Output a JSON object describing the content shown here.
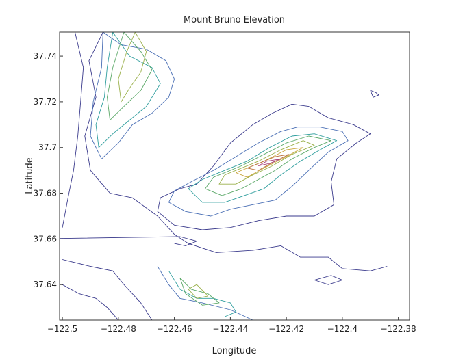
{
  "chart_data": {
    "type": "contour",
    "title": "Mount Bruno Elevation",
    "xlabel": "Longitude",
    "ylabel": "Latitude",
    "xlim": [
      -122.501,
      -122.376
    ],
    "ylim": [
      37.6245,
      37.7505
    ],
    "xticks": [
      -122.5,
      -122.48,
      -122.46,
      -122.44,
      -122.42,
      -122.4,
      -122.38
    ],
    "xtick_labels": [
      "−122.5",
      "−122.48",
      "−122.46",
      "−122.44",
      "−122.42",
      "−122.4",
      "−122.38"
    ],
    "yticks": [
      37.64,
      37.66,
      37.68,
      37.7,
      37.72,
      37.74
    ],
    "ytick_labels": [
      "37.64",
      "37.66",
      "37.68",
      "37.7",
      "37.72",
      "37.74"
    ],
    "grid": false,
    "legend": false,
    "level_colors": [
      "#3a3a8c",
      "#4a6fb5",
      "#2f9e9e",
      "#5aa867",
      "#9ab04a",
      "#c9a43a",
      "#b86e3a",
      "#a8447a"
    ],
    "contours": [
      {
        "level": 0,
        "points": [
          [
            -122.4955,
            37.7505
          ],
          [
            -122.4925,
            37.735
          ],
          [
            -122.4935,
            37.72
          ],
          [
            -122.4945,
            37.705
          ],
          [
            -122.496,
            37.69
          ],
          [
            -122.498,
            37.678
          ],
          [
            -122.5,
            37.665
          ]
        ]
      },
      {
        "level": 0,
        "points": [
          [
            -122.4855,
            37.7505
          ],
          [
            -122.4905,
            37.738
          ],
          [
            -122.488,
            37.722
          ],
          [
            -122.492,
            37.705
          ],
          [
            -122.49,
            37.69
          ],
          [
            -122.483,
            37.68
          ],
          [
            -122.475,
            37.678
          ],
          [
            -122.466,
            37.67
          ],
          [
            -122.46,
            37.662
          ],
          [
            -122.455,
            37.658
          ],
          [
            -122.445,
            37.654
          ],
          [
            -122.432,
            37.655
          ],
          [
            -122.422,
            37.657
          ],
          [
            -122.415,
            37.652
          ],
          [
            -122.405,
            37.652
          ],
          [
            -122.4,
            37.647
          ],
          [
            -122.39,
            37.646
          ],
          [
            -122.384,
            37.648
          ]
        ]
      },
      {
        "level": 0,
        "points": [
          [
            -122.5,
            37.651
          ],
          [
            -122.49,
            37.648
          ],
          [
            -122.482,
            37.646
          ],
          [
            -122.478,
            37.64
          ],
          [
            -122.472,
            37.632
          ],
          [
            -122.468,
            37.6245
          ]
        ]
      },
      {
        "level": 0,
        "points": [
          [
            -122.5,
            37.64
          ],
          [
            -122.494,
            37.636
          ],
          [
            -122.488,
            37.634
          ],
          [
            -122.484,
            37.63
          ],
          [
            -122.48,
            37.6245
          ]
        ]
      },
      {
        "level": 0,
        "points": [
          [
            -122.452,
            37.684
          ],
          [
            -122.458,
            37.682
          ],
          [
            -122.465,
            37.678
          ],
          [
            -122.466,
            37.672
          ],
          [
            -122.46,
            37.666
          ],
          [
            -122.45,
            37.664
          ],
          [
            -122.44,
            37.665
          ],
          [
            -122.43,
            37.668
          ],
          [
            -122.42,
            37.67
          ],
          [
            -122.41,
            37.67
          ],
          [
            -122.403,
            37.675
          ],
          [
            -122.404,
            37.685
          ],
          [
            -122.402,
            37.695
          ],
          [
            -122.395,
            37.702
          ],
          [
            -122.39,
            37.706
          ],
          [
            -122.396,
            37.71
          ],
          [
            -122.405,
            37.713
          ],
          [
            -122.412,
            37.718
          ],
          [
            -122.418,
            37.719
          ],
          [
            -122.425,
            37.715
          ],
          [
            -122.432,
            37.71
          ],
          [
            -122.44,
            37.702
          ],
          [
            -122.446,
            37.692
          ],
          [
            -122.452,
            37.684
          ]
        ]
      },
      {
        "level": 1,
        "points": [
          [
            -122.4855,
            37.7505
          ],
          [
            -122.479,
            37.745
          ],
          [
            -122.47,
            37.743
          ],
          [
            -122.463,
            37.738
          ],
          [
            -122.46,
            37.73
          ],
          [
            -122.462,
            37.722
          ],
          [
            -122.468,
            37.715
          ],
          [
            -122.475,
            37.71
          ],
          [
            -122.48,
            37.702
          ],
          [
            -122.486,
            37.695
          ],
          [
            -122.49,
            37.705
          ],
          [
            -122.489,
            37.72
          ],
          [
            -122.486,
            37.735
          ],
          [
            -122.4855,
            37.7505
          ]
        ]
      },
      {
        "level": 1,
        "points": [
          [
            -122.454,
            37.685
          ],
          [
            -122.46,
            37.681
          ],
          [
            -122.462,
            37.676
          ],
          [
            -122.456,
            37.672
          ],
          [
            -122.447,
            37.67
          ],
          [
            -122.44,
            37.673
          ],
          [
            -122.432,
            37.675
          ],
          [
            -122.424,
            37.677
          ],
          [
            -122.418,
            37.683
          ],
          [
            -122.412,
            37.69
          ],
          [
            -122.405,
            37.698
          ],
          [
            -122.398,
            37.703
          ],
          [
            -122.4,
            37.707
          ],
          [
            -122.408,
            37.709
          ],
          [
            -122.416,
            37.709
          ],
          [
            -122.422,
            37.707
          ],
          [
            -122.43,
            37.702
          ],
          [
            -122.438,
            37.696
          ],
          [
            -122.446,
            37.69
          ],
          [
            -122.454,
            37.685
          ]
        ]
      },
      {
        "level": 1,
        "points": [
          [
            -122.466,
            37.648
          ],
          [
            -122.462,
            37.64
          ],
          [
            -122.458,
            37.634
          ],
          [
            -122.45,
            37.632
          ],
          [
            -122.44,
            37.629
          ],
          [
            -122.432,
            37.6245
          ]
        ]
      },
      {
        "level": 2,
        "points": [
          [
            -122.482,
            37.7505
          ],
          [
            -122.476,
            37.74
          ],
          [
            -122.468,
            37.735
          ],
          [
            -122.465,
            37.728
          ],
          [
            -122.47,
            37.718
          ],
          [
            -122.476,
            37.712
          ],
          [
            -122.482,
            37.706
          ],
          [
            -122.487,
            37.7
          ],
          [
            -122.488,
            37.71
          ],
          [
            -122.485,
            37.722
          ],
          [
            -122.484,
            37.735
          ],
          [
            -122.482,
            37.7505
          ]
        ]
      },
      {
        "level": 2,
        "points": [
          [
            -122.45,
            37.686
          ],
          [
            -122.455,
            37.682
          ],
          [
            -122.45,
            37.676
          ],
          [
            -122.442,
            37.676
          ],
          [
            -122.435,
            37.679
          ],
          [
            -122.428,
            37.682
          ],
          [
            -122.422,
            37.688
          ],
          [
            -122.415,
            37.694
          ],
          [
            -122.408,
            37.699
          ],
          [
            -122.402,
            37.703
          ],
          [
            -122.41,
            37.706
          ],
          [
            -122.418,
            37.705
          ],
          [
            -122.426,
            37.7
          ],
          [
            -122.434,
            37.694
          ],
          [
            -122.442,
            37.69
          ],
          [
            -122.45,
            37.686
          ]
        ]
      },
      {
        "level": 2,
        "points": [
          [
            -122.462,
            37.646
          ],
          [
            -122.458,
            37.638
          ],
          [
            -122.452,
            37.634
          ],
          [
            -122.446,
            37.634
          ],
          [
            -122.44,
            37.632
          ],
          [
            -122.438,
            37.628
          ],
          [
            -122.442,
            37.626
          ]
        ]
      },
      {
        "level": 3,
        "points": [
          [
            -122.478,
            37.7505
          ],
          [
            -122.472,
            37.742
          ],
          [
            -122.468,
            37.734
          ],
          [
            -122.472,
            37.725
          ],
          [
            -122.478,
            37.718
          ],
          [
            -122.483,
            37.712
          ],
          [
            -122.484,
            37.722
          ],
          [
            -122.482,
            37.735
          ],
          [
            -122.478,
            37.7505
          ]
        ]
      },
      {
        "level": 3,
        "points": [
          [
            -122.446,
            37.687
          ],
          [
            -122.449,
            37.682
          ],
          [
            -122.443,
            37.679
          ],
          [
            -122.436,
            37.682
          ],
          [
            -122.43,
            37.686
          ],
          [
            -122.424,
            37.69
          ],
          [
            -122.418,
            37.695
          ],
          [
            -122.41,
            37.7
          ],
          [
            -122.404,
            37.703
          ],
          [
            -122.412,
            37.705
          ],
          [
            -122.42,
            37.702
          ],
          [
            -122.428,
            37.697
          ],
          [
            -122.436,
            37.692
          ],
          [
            -122.446,
            37.687
          ]
        ]
      },
      {
        "level": 3,
        "points": [
          [
            -122.458,
            37.643
          ],
          [
            -122.454,
            37.638
          ],
          [
            -122.448,
            37.636
          ],
          [
            -122.444,
            37.632
          ],
          [
            -122.45,
            37.631
          ],
          [
            -122.456,
            37.636
          ],
          [
            -122.458,
            37.643
          ]
        ]
      },
      {
        "level": 4,
        "points": [
          [
            -122.474,
            37.7505
          ],
          [
            -122.47,
            37.742
          ],
          [
            -122.472,
            37.733
          ],
          [
            -122.476,
            37.726
          ],
          [
            -122.479,
            37.72
          ],
          [
            -122.48,
            37.73
          ],
          [
            -122.477,
            37.742
          ],
          [
            -122.474,
            37.7505
          ]
        ]
      },
      {
        "level": 4,
        "points": [
          [
            -122.442,
            37.688
          ],
          [
            -122.444,
            37.684
          ],
          [
            -122.438,
            37.684
          ],
          [
            -122.432,
            37.688
          ],
          [
            -122.425,
            37.692
          ],
          [
            -122.418,
            37.697
          ],
          [
            -122.41,
            37.701
          ],
          [
            -122.414,
            37.703
          ],
          [
            -122.422,
            37.699
          ],
          [
            -122.43,
            37.694
          ],
          [
            -122.442,
            37.688
          ]
        ]
      },
      {
        "level": 4,
        "points": [
          [
            -122.452,
            37.64
          ],
          [
            -122.448,
            37.635
          ],
          [
            -122.452,
            37.634
          ],
          [
            -122.455,
            37.638
          ],
          [
            -122.452,
            37.64
          ]
        ]
      },
      {
        "level": 5,
        "points": [
          [
            -122.438,
            37.689
          ],
          [
            -122.434,
            37.687
          ],
          [
            -122.428,
            37.691
          ],
          [
            -122.42,
            37.696
          ],
          [
            -122.414,
            37.7
          ],
          [
            -122.42,
            37.699
          ],
          [
            -122.428,
            37.694
          ],
          [
            -122.438,
            37.689
          ]
        ]
      },
      {
        "level": 6,
        "points": [
          [
            -122.434,
            37.691
          ],
          [
            -122.43,
            37.69
          ],
          [
            -122.424,
            37.694
          ],
          [
            -122.419,
            37.697
          ],
          [
            -122.424,
            37.696
          ],
          [
            -122.434,
            37.691
          ]
        ]
      },
      {
        "level": 7,
        "points": [
          [
            -122.43,
            37.692
          ],
          [
            -122.426,
            37.693
          ],
          [
            -122.422,
            37.695
          ],
          [
            -122.427,
            37.694
          ],
          [
            -122.43,
            37.692
          ]
        ]
      },
      {
        "level": 0,
        "points": [
          [
            -122.512,
            37.66
          ],
          [
            -122.458,
            37.661
          ],
          [
            -122.452,
            37.659
          ],
          [
            -122.456,
            37.657
          ],
          [
            -122.46,
            37.658
          ]
        ]
      },
      {
        "level": 0,
        "points": [
          [
            -122.39,
            37.725
          ],
          [
            -122.388,
            37.724
          ],
          [
            -122.387,
            37.723
          ],
          [
            -122.389,
            37.722
          ],
          [
            -122.39,
            37.725
          ]
        ]
      },
      {
        "level": 0,
        "points": [
          [
            -122.41,
            37.642
          ],
          [
            -122.404,
            37.644
          ],
          [
            -122.4,
            37.642
          ],
          [
            -122.405,
            37.64
          ],
          [
            -122.41,
            37.642
          ]
        ]
      }
    ]
  }
}
